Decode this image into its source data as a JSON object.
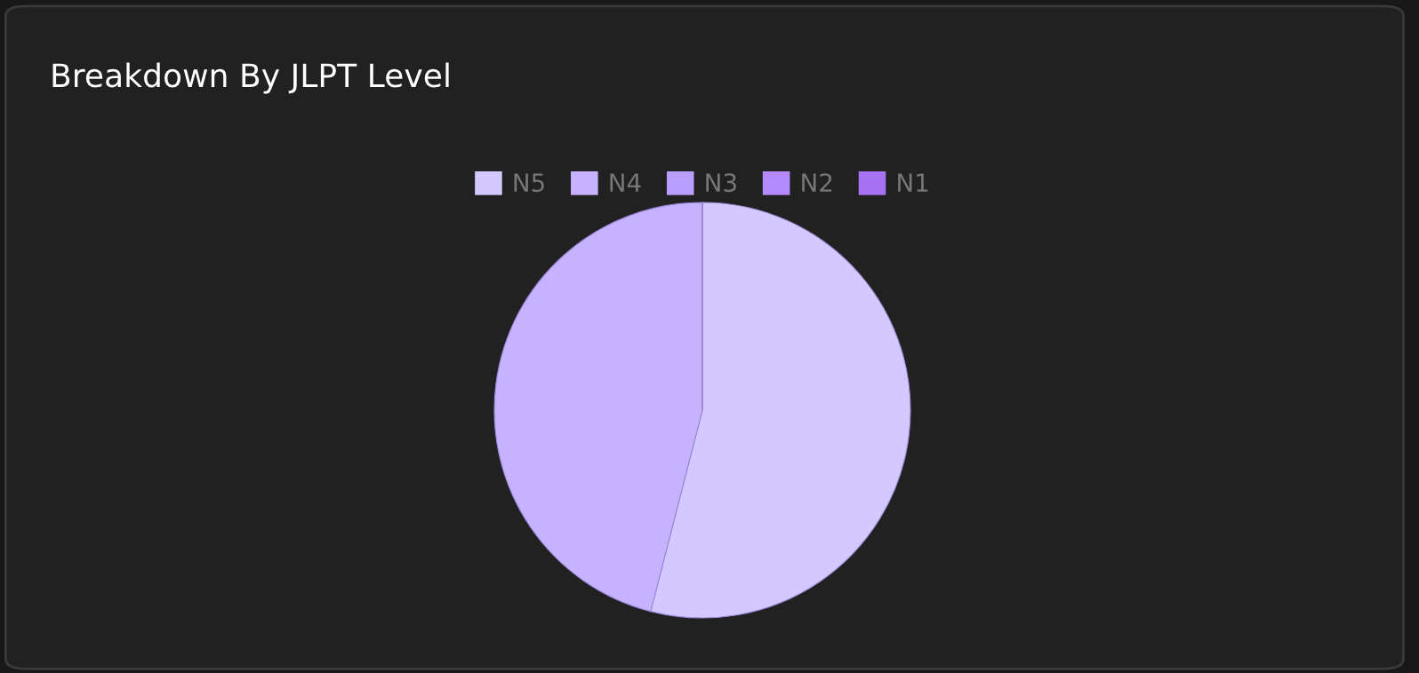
{
  "chart_data": {
    "type": "pie",
    "title": "Breakdown By JLPT Level",
    "categories": [
      "N5",
      "N4",
      "N3",
      "N2",
      "N1"
    ],
    "values": [
      54,
      46,
      0,
      0,
      0
    ],
    "colors": [
      "#d4c9ff",
      "#c6b2ff",
      "#b99eff",
      "#b48bff",
      "#a872f5"
    ],
    "legend": "top"
  }
}
